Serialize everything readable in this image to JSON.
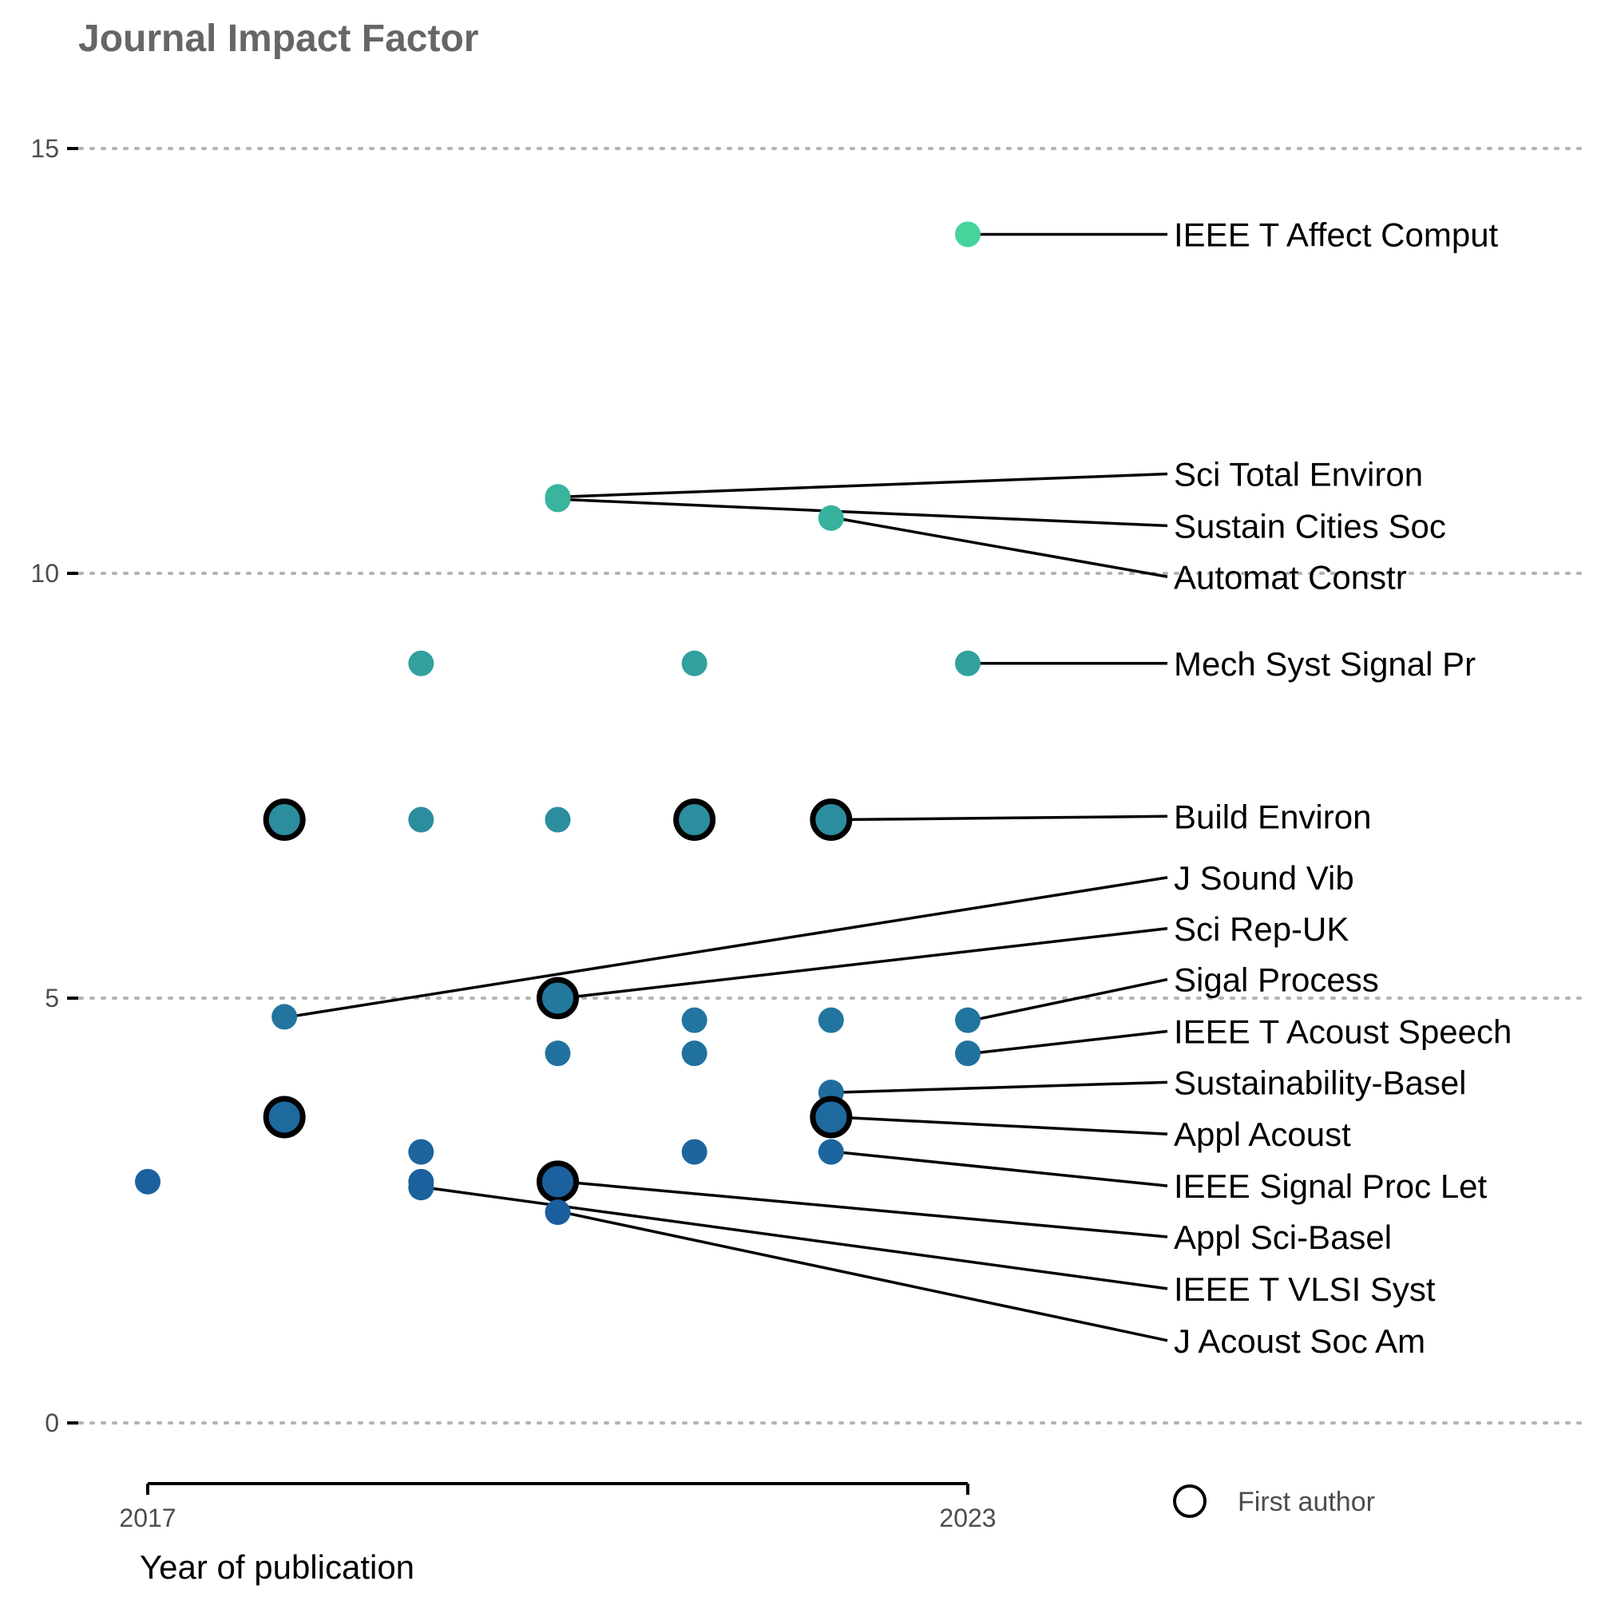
{
  "chart_data": {
    "type": "scatter",
    "title": "Journal Impact Factor",
    "xlabel": "Year of publication",
    "ylabel": "",
    "xlim": [
      2017,
      2023
    ],
    "ylim": [
      0,
      15
    ],
    "xticks": [
      "2017",
      "2023"
    ],
    "yticks": [
      "0",
      "5",
      "10",
      "15"
    ],
    "grid": "horizontal-dotted",
    "legend": {
      "position": "bottom-right",
      "label": "First author"
    },
    "color_scale": [
      "#1a5e9e",
      "#44d49c"
    ],
    "points": [
      {
        "x": 2017,
        "y": 2.84,
        "first_author": false
      },
      {
        "x": 2018,
        "y": 7.1,
        "first_author": true
      },
      {
        "x": 2018,
        "y": 4.78,
        "first_author": false
      },
      {
        "x": 2018,
        "y": 3.6,
        "first_author": true
      },
      {
        "x": 2019,
        "y": 8.94,
        "first_author": false
      },
      {
        "x": 2019,
        "y": 7.1,
        "first_author": false
      },
      {
        "x": 2019,
        "y": 3.19,
        "first_author": false
      },
      {
        "x": 2019,
        "y": 2.84,
        "first_author": false
      },
      {
        "x": 2019,
        "y": 2.77,
        "first_author": false
      },
      {
        "x": 2020,
        "y": 10.9,
        "first_author": false
      },
      {
        "x": 2020,
        "y": 10.87,
        "first_author": false
      },
      {
        "x": 2020,
        "y": 7.1,
        "first_author": false
      },
      {
        "x": 2020,
        "y": 5.0,
        "first_author": true
      },
      {
        "x": 2020,
        "y": 4.35,
        "first_author": false
      },
      {
        "x": 2020,
        "y": 2.84,
        "first_author": true
      },
      {
        "x": 2020,
        "y": 2.48,
        "first_author": false
      },
      {
        "x": 2021,
        "y": 8.94,
        "first_author": false
      },
      {
        "x": 2021,
        "y": 7.1,
        "first_author": true
      },
      {
        "x": 2021,
        "y": 4.74,
        "first_author": false
      },
      {
        "x": 2021,
        "y": 4.35,
        "first_author": false
      },
      {
        "x": 2021,
        "y": 3.19,
        "first_author": false
      },
      {
        "x": 2022,
        "y": 10.65,
        "first_author": false
      },
      {
        "x": 2022,
        "y": 7.1,
        "first_author": true
      },
      {
        "x": 2022,
        "y": 4.74,
        "first_author": false
      },
      {
        "x": 2022,
        "y": 3.89,
        "first_author": false
      },
      {
        "x": 2022,
        "y": 3.6,
        "first_author": true
      },
      {
        "x": 2022,
        "y": 3.19,
        "first_author": false
      },
      {
        "x": 2023,
        "y": 13.99,
        "first_author": false
      },
      {
        "x": 2023,
        "y": 8.94,
        "first_author": false
      },
      {
        "x": 2023,
        "y": 4.74,
        "first_author": false
      },
      {
        "x": 2023,
        "y": 4.35,
        "first_author": false
      }
    ],
    "annotations": [
      {
        "text": "IEEE T Affect Comput",
        "x": 2023,
        "y": 13.99,
        "label_y": 13.99
      },
      {
        "text": "Sci Total Environ",
        "x": 2020,
        "y": 10.9,
        "label_y": 11.17
      },
      {
        "text": "Sustain Cities Soc",
        "x": 2020,
        "y": 10.87,
        "label_y": 10.56
      },
      {
        "text": "Automat Constr",
        "x": 2022,
        "y": 10.65,
        "label_y": 9.96
      },
      {
        "text": "Mech Syst Signal Pr",
        "x": 2023,
        "y": 8.94,
        "label_y": 8.94
      },
      {
        "text": "Build Environ",
        "x": 2022,
        "y": 7.1,
        "label_y": 7.14
      },
      {
        "text": "J Sound Vib",
        "x": 2018,
        "y": 4.78,
        "label_y": 6.42
      },
      {
        "text": "Sci Rep-UK",
        "x": 2020,
        "y": 5.0,
        "label_y": 5.82
      },
      {
        "text": "Sigal Process",
        "x": 2023,
        "y": 4.74,
        "label_y": 5.22
      },
      {
        "text": "IEEE T Acoust Speech",
        "x": 2023,
        "y": 4.35,
        "label_y": 4.61
      },
      {
        "text": "Sustainability-Basel",
        "x": 2022,
        "y": 3.89,
        "label_y": 4.01
      },
      {
        "text": "Appl Acoust",
        "x": 2022,
        "y": 3.6,
        "label_y": 3.4
      },
      {
        "text": "IEEE Signal Proc Let",
        "x": 2022,
        "y": 3.19,
        "label_y": 2.79
      },
      {
        "text": "Appl Sci-Basel",
        "x": 2020,
        "y": 2.84,
        "label_y": 2.19
      },
      {
        "text": "IEEE T VLSI Syst",
        "x": 2019,
        "y": 2.77,
        "label_y": 1.58
      },
      {
        "text": "J Acoust Soc Am",
        "x": 2020,
        "y": 2.48,
        "label_y": 0.97
      }
    ]
  }
}
